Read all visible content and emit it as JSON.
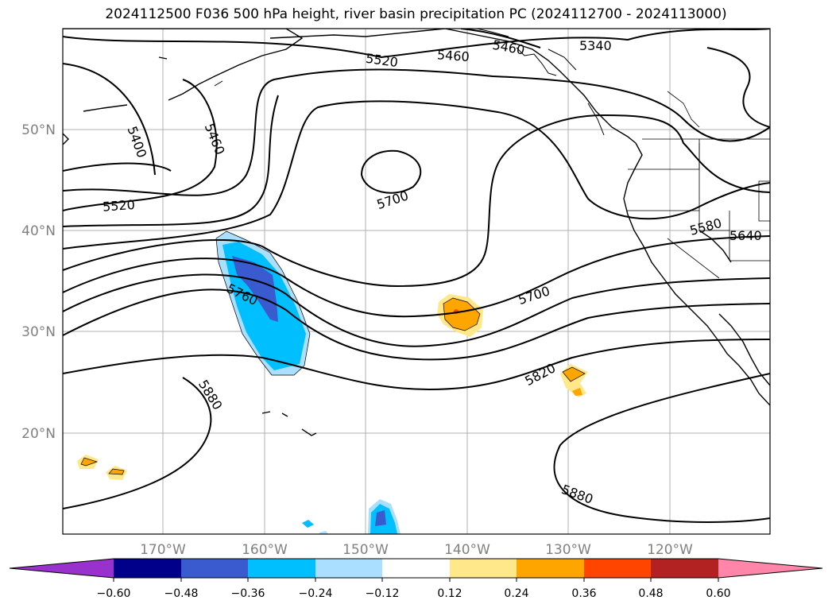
{
  "title": "2024112500 F036 500 hPa height, river basin precipitation PC (2024112700 - 2024113000)",
  "map": {
    "lon_labels": [
      "170°W",
      "160°W",
      "150°W",
      "140°W",
      "130°W",
      "120°W"
    ],
    "lat_labels": [
      "50°N",
      "40°N",
      "30°N",
      "20°N"
    ]
  },
  "contours": {
    "labels": [
      "5340",
      "5400",
      "5460",
      "5460",
      "5460",
      "5520",
      "5520",
      "5580",
      "5640",
      "5700",
      "5700",
      "5760",
      "5820",
      "5880",
      "5880"
    ]
  },
  "colorbar": {
    "ticks": [
      "−0.60",
      "−0.48",
      "−0.36",
      "−0.24",
      "−0.12",
      "0.12",
      "0.24",
      "0.36",
      "0.48",
      "0.60"
    ],
    "colors": [
      "#9932cc",
      "#00008b",
      "#3a5bd0",
      "#00bfff",
      "#aadfff",
      "#ffffff",
      "#ffe88a",
      "#ffa500",
      "#ff4500",
      "#b22222",
      "#ff86a8",
      "#ff86a8"
    ]
  }
}
